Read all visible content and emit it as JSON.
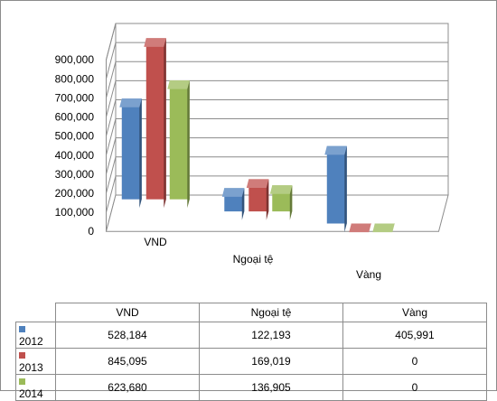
{
  "chart_data": {
    "type": "bar",
    "title": "",
    "categories": [
      "VND",
      "Ngoại tệ",
      "Vàng"
    ],
    "series": [
      {
        "name": "2012",
        "color": "#4f81bd",
        "values": [
          528184,
          122193,
          405991
        ]
      },
      {
        "name": "2013",
        "color": "#c0504d",
        "values": [
          845095,
          169019,
          0
        ]
      },
      {
        "name": "2014",
        "color": "#9bbb59",
        "values": [
          623680,
          136905,
          0
        ]
      }
    ],
    "ylim": [
      0,
      900000
    ],
    "yticks": [
      "0",
      "100,000",
      "200,000",
      "300,000",
      "400,000",
      "500,000",
      "600,000",
      "700,000",
      "800,000",
      "900,000"
    ],
    "grid": true,
    "table": {
      "columns": [
        "VND",
        "Ngoại tệ",
        "Vàng"
      ],
      "rows": [
        {
          "label": "2012",
          "cells": [
            "528,184",
            "122,193",
            "405,991"
          ]
        },
        {
          "label": "2013",
          "cells": [
            "845,095",
            "169,019",
            "0"
          ]
        },
        {
          "label": "2014",
          "cells": [
            "623,680",
            "136,905",
            "0"
          ]
        }
      ]
    }
  }
}
